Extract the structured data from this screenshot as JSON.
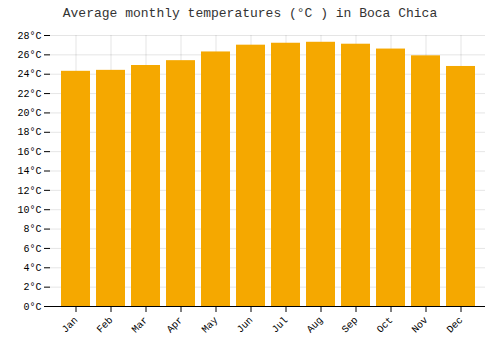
{
  "chart_data": {
    "type": "bar",
    "title": "Average monthly temperatures (°C ) in Boca Chica",
    "categories": [
      "Jan",
      "Feb",
      "Mar",
      "Apr",
      "May",
      "Jun",
      "Jul",
      "Aug",
      "Sep",
      "Oct",
      "Nov",
      "Dec"
    ],
    "values": [
      24.3,
      24.4,
      24.9,
      25.4,
      26.3,
      27.0,
      27.2,
      27.3,
      27.1,
      26.6,
      25.9,
      24.8
    ],
    "color": "#F5A800",
    "ylim": [
      0,
      28
    ],
    "yticks": [
      {
        "value": 0,
        "label": "0°C"
      },
      {
        "value": 2,
        "label": "2°C"
      },
      {
        "value": 4,
        "label": "4°C"
      },
      {
        "value": 6,
        "label": "6°C"
      },
      {
        "value": 8,
        "label": "8°C"
      },
      {
        "value": 10,
        "label": "10°C"
      },
      {
        "value": 12,
        "label": "12°C"
      },
      {
        "value": 14,
        "label": "14°C"
      },
      {
        "value": 16,
        "label": "16°C"
      },
      {
        "value": 18,
        "label": "18°C"
      },
      {
        "value": 20,
        "label": "20°C"
      },
      {
        "value": 22,
        "label": "22°C"
      },
      {
        "value": 24,
        "label": "24°C"
      },
      {
        "value": 26,
        "label": "26°C"
      },
      {
        "value": 28,
        "label": "28°C"
      }
    ],
    "grid": true
  }
}
